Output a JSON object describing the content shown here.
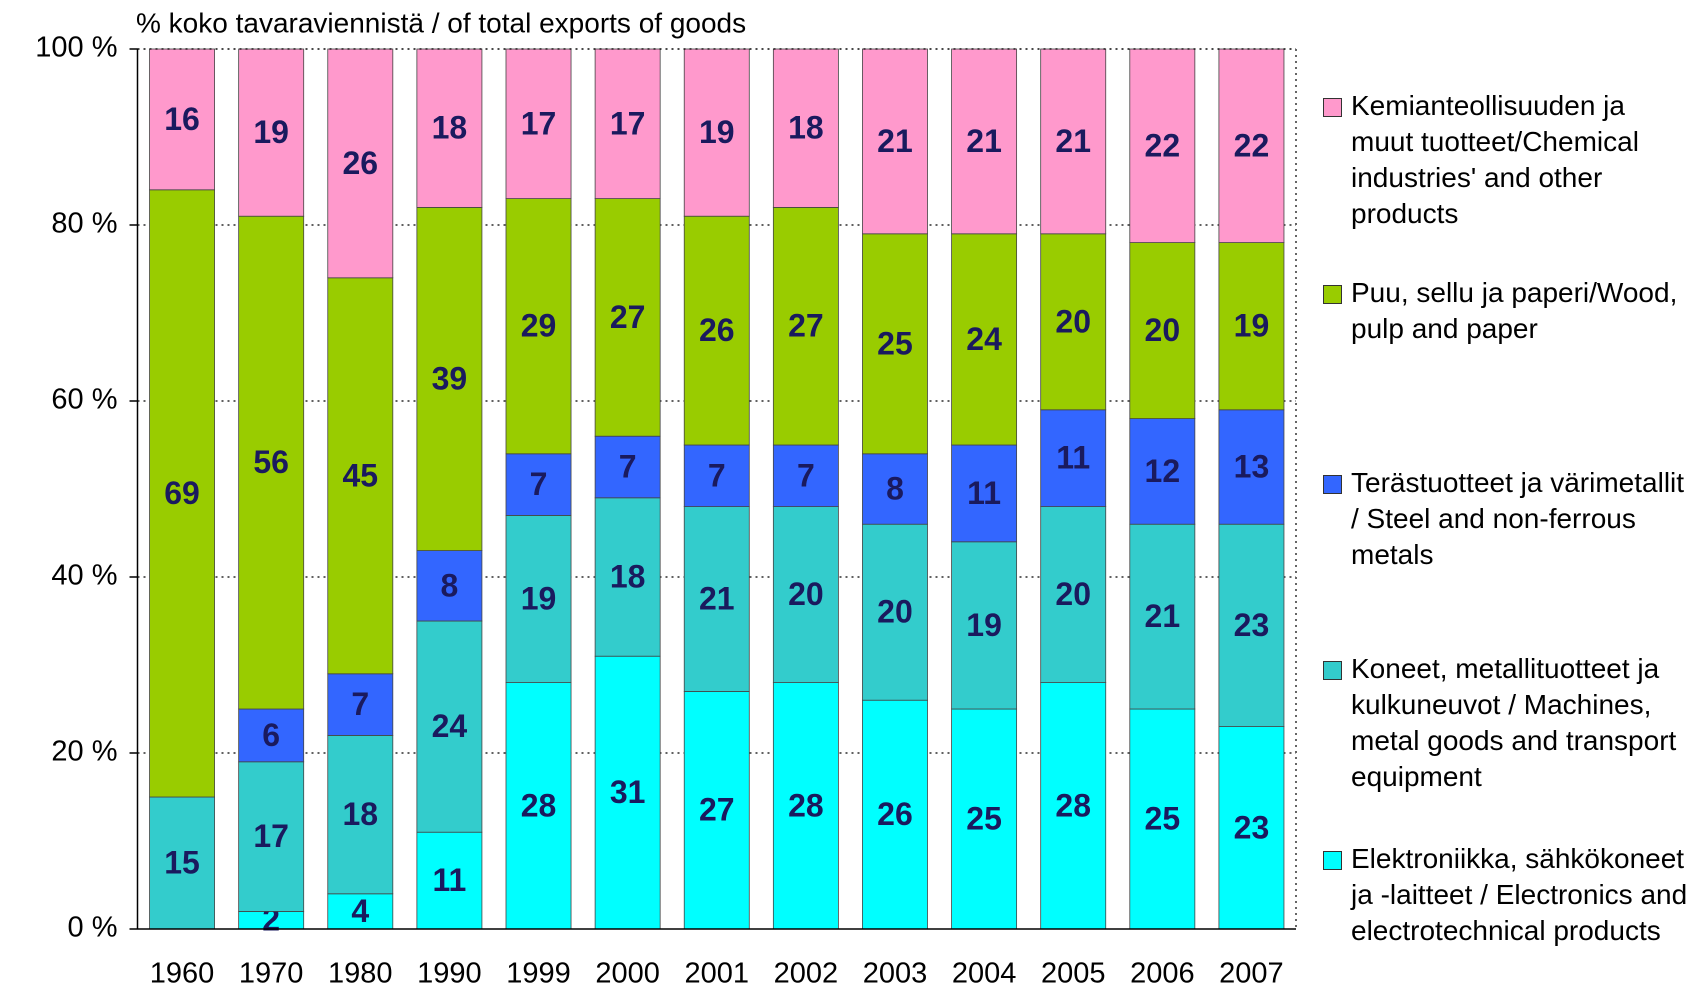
{
  "chart_data": {
    "type": "stacked_bar",
    "title": "% koko tavaraviennistä / of total exports of goods",
    "categories": [
      "1960",
      "1970",
      "1980",
      "1990",
      "1999",
      "2000",
      "2001",
      "2002",
      "2003",
      "2004",
      "2005",
      "2006",
      "2007"
    ],
    "series": [
      {
        "name": "Elektroniikka, sähkökoneet ja -laitteet / Electronics and electrotechnical products",
        "color": "#00ffff",
        "values": [
          null,
          2,
          4,
          11,
          28,
          31,
          27,
          28,
          26,
          25,
          28,
          25,
          23
        ]
      },
      {
        "name": "Koneet, metallituotteet ja kulkuneuvot / Machines, metal goods and transport equipment",
        "color": "#33cccc",
        "values": [
          15,
          17,
          18,
          24,
          19,
          18,
          21,
          20,
          20,
          19,
          20,
          21,
          23
        ]
      },
      {
        "name": "Terästuotteet ja värimetallit / Steel and non-ferrous metals",
        "color": "#3366ff",
        "values": [
          null,
          6,
          7,
          8,
          7,
          7,
          7,
          7,
          8,
          11,
          11,
          12,
          13
        ]
      },
      {
        "name": "Puu, sellu ja paperi/Wood, pulp and paper",
        "color": "#99cc00",
        "values": [
          69,
          56,
          45,
          39,
          29,
          27,
          26,
          27,
          25,
          24,
          20,
          20,
          19
        ]
      },
      {
        "name": "Kemianteollisuuden ja muut tuotteet/Chemical industries' and other products",
        "color": "#ff99cc",
        "values": [
          16,
          19,
          26,
          18,
          17,
          17,
          19,
          18,
          21,
          21,
          21,
          22,
          22
        ]
      }
    ],
    "ylim": [
      0,
      100
    ],
    "yticks": [
      {
        "value": 0,
        "label": "0 %"
      },
      {
        "value": 20,
        "label": "20 %"
      },
      {
        "value": 40,
        "label": "40 %"
      },
      {
        "value": 60,
        "label": "60 %"
      },
      {
        "value": 80,
        "label": "80 %"
      },
      {
        "value": 100,
        "label": "100 %"
      }
    ],
    "grid": true,
    "legend": "right"
  }
}
